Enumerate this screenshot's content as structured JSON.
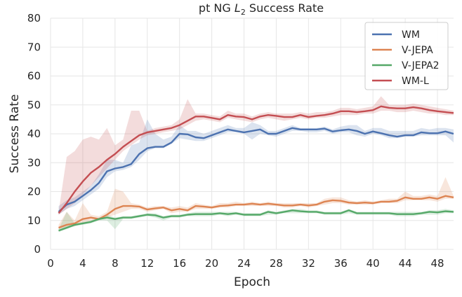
{
  "chart_data": {
    "type": "line",
    "title": "pt NG",
    "title_math": "L",
    "title_sub": "2",
    "title_suffix": "Success Rate",
    "xlabel": "Epoch",
    "ylabel": "Success Rate",
    "xlim": [
      0,
      50
    ],
    "ylim": [
      0,
      80
    ],
    "xticks": [
      0,
      4,
      8,
      12,
      16,
      20,
      24,
      28,
      32,
      36,
      40,
      44,
      48
    ],
    "yticks": [
      0,
      10,
      20,
      30,
      40,
      50,
      60,
      70,
      80
    ],
    "grid": true,
    "legend_position": "top-right",
    "x": [
      1,
      2,
      3,
      4,
      5,
      6,
      7,
      8,
      9,
      10,
      11,
      12,
      13,
      14,
      15,
      16,
      17,
      18,
      19,
      20,
      21,
      22,
      23,
      24,
      25,
      26,
      27,
      28,
      29,
      30,
      31,
      32,
      33,
      34,
      35,
      36,
      37,
      38,
      39,
      40,
      41,
      42,
      43,
      44,
      45,
      46,
      47,
      48,
      49,
      50
    ],
    "series": [
      {
        "name": "WM",
        "color": "#4c72b0",
        "values": [
          13,
          15.5,
          16.5,
          18.5,
          20.5,
          23,
          27,
          28,
          28.5,
          29.5,
          33,
          35,
          35.5,
          35.5,
          37,
          40,
          39.8,
          38.8,
          38.5,
          39.5,
          40.5,
          41.5,
          41,
          40.5,
          41,
          41.5,
          40,
          40,
          41,
          42,
          41.5,
          41.5,
          41.5,
          41.8,
          40.8,
          41.2,
          41.5,
          41,
          40,
          40.8,
          40.2,
          39.5,
          39,
          39.5,
          39.5,
          40.5,
          40.2,
          40.2,
          40.8,
          40
        ],
        "band_low": [
          12,
          14,
          15,
          17,
          19,
          21,
          25,
          27,
          27.5,
          28.5,
          31,
          34,
          35,
          35,
          36.5,
          38.5,
          38,
          37.5,
          37.5,
          38.5,
          39.5,
          40.5,
          40.5,
          40,
          38,
          40,
          39.5,
          39,
          40,
          41,
          41,
          40.5,
          40.5,
          41,
          40,
          40.5,
          40.5,
          39.5,
          39,
          40,
          39.5,
          38.5,
          38.5,
          39,
          39,
          39.5,
          39.5,
          39.5,
          39.5,
          37
        ],
        "band_high": [
          15,
          17,
          18,
          20,
          22,
          26,
          31,
          31,
          30,
          36,
          37,
          45,
          40,
          38,
          39,
          43,
          41,
          41,
          40,
          41,
          42,
          43,
          42,
          42,
          44,
          43,
          41,
          41,
          42,
          43,
          42,
          42,
          42,
          42.5,
          41.5,
          42.5,
          43,
          43,
          41,
          42,
          42,
          41,
          41,
          41,
          41,
          42,
          41.5,
          42,
          42,
          41.5
        ]
      },
      {
        "name": "V-JEPA",
        "color": "#dd8452",
        "values": [
          7.5,
          8.5,
          9,
          10.5,
          11,
          10.5,
          12,
          14,
          15,
          15,
          14.8,
          13.8,
          14.2,
          14.5,
          13.5,
          14,
          13.5,
          15,
          14.8,
          14.5,
          15,
          15.2,
          15.5,
          15.5,
          15.8,
          15.5,
          15.8,
          15.5,
          15.2,
          15.2,
          15.5,
          15.2,
          15.5,
          16.5,
          17,
          16.8,
          16.2,
          16,
          16.2,
          16,
          16.5,
          16.5,
          16.8,
          18,
          17.5,
          17.5,
          18,
          17.5,
          18.5,
          18
        ],
        "band_low": [
          7,
          7.5,
          8,
          9,
          10,
          10,
          11,
          12,
          13,
          14,
          14,
          13,
          13.5,
          14,
          12.5,
          13,
          13,
          14,
          14,
          14,
          14.5,
          14.5,
          15,
          15,
          15,
          15,
          15,
          15,
          14.5,
          14.5,
          15,
          14.5,
          15,
          15.5,
          16,
          16,
          15.5,
          15.5,
          15.5,
          15.5,
          16,
          16,
          16,
          17,
          17,
          17,
          17,
          16.5,
          17.5,
          17.5
        ],
        "band_high": [
          8.5,
          13,
          10,
          16,
          12,
          11.5,
          13,
          21,
          20,
          16,
          15.5,
          14.5,
          15,
          15,
          14.5,
          15,
          14.5,
          16,
          15.5,
          15,
          16,
          16,
          16.5,
          16,
          16.5,
          16,
          16.5,
          16,
          16,
          16,
          16,
          16,
          16,
          17.5,
          18,
          18,
          17,
          16.5,
          17,
          16.5,
          17,
          17.5,
          17.5,
          20,
          18.5,
          18.5,
          19,
          18.5,
          25,
          18.5
        ]
      },
      {
        "name": "V-JEPA2",
        "color": "#55a868",
        "values": [
          6.5,
          7.5,
          8.5,
          9,
          9.5,
          10.5,
          11,
          10.5,
          11,
          11,
          11.5,
          12,
          11.8,
          11,
          11.5,
          11.5,
          12,
          12.2,
          12.2,
          12.2,
          12.5,
          12.2,
          12.5,
          12,
          12,
          12,
          13,
          12.5,
          13,
          13.5,
          13.2,
          13,
          13,
          12.5,
          12.5,
          12.5,
          13.5,
          12.5,
          12.5,
          12.5,
          12.5,
          12.5,
          12.2,
          12.2,
          12.2,
          12.5,
          13,
          12.8,
          13.2,
          13
        ],
        "band_low": [
          6,
          7,
          8,
          8.5,
          9,
          10,
          10,
          7,
          10.5,
          10.5,
          11,
          11.5,
          11,
          10,
          11,
          11,
          11.5,
          11.5,
          11.5,
          11.5,
          12,
          11.5,
          12,
          11.5,
          11.5,
          11.5,
          12,
          12,
          12.5,
          12.5,
          12.5,
          12.5,
          12.5,
          12,
          12,
          12,
          12.5,
          12,
          12,
          12,
          12,
          12,
          11.5,
          11.5,
          11.5,
          12,
          12,
          12,
          12.5,
          12.5
        ],
        "band_high": [
          7,
          13,
          9,
          9.5,
          10,
          11,
          12,
          11,
          11.5,
          11.5,
          12,
          12.5,
          12.5,
          11.5,
          12,
          12,
          12.5,
          13,
          13,
          13,
          13,
          13,
          13,
          12.5,
          12.5,
          12.5,
          13.5,
          13,
          13.5,
          14,
          14,
          13.5,
          13.5,
          13,
          13,
          13,
          14,
          13,
          13,
          13,
          13,
          13,
          13,
          13,
          13,
          13,
          13.5,
          13.5,
          14,
          13.5
        ]
      },
      {
        "name": "WM-L",
        "color": "#c44e52",
        "values": [
          12.5,
          16,
          20,
          23.5,
          26.5,
          28.5,
          31,
          33,
          35.5,
          37.5,
          39.5,
          40.5,
          41,
          41.5,
          42,
          43,
          44.5,
          46,
          46,
          45.5,
          45,
          46.5,
          46,
          45.8,
          45,
          46,
          46.5,
          46.2,
          45.8,
          45.8,
          46.5,
          45.8,
          46.2,
          46.5,
          47,
          47.8,
          47.8,
          47.5,
          47.8,
          48.2,
          49.5,
          49,
          48.8,
          48.8,
          49.2,
          48.8,
          48.2,
          47.8,
          47.5,
          47.2
        ],
        "band_low": [
          12,
          14,
          16,
          19,
          22,
          25,
          28,
          31,
          34,
          36,
          38,
          39.5,
          40,
          40.5,
          41,
          41.5,
          43,
          44.5,
          45,
          44.5,
          44,
          45.5,
          45,
          44.5,
          44,
          45,
          45.5,
          45,
          44.5,
          45,
          45.5,
          45,
          45.5,
          45.5,
          46,
          46.5,
          46.5,
          46.5,
          47,
          47,
          48,
          48,
          47.5,
          47.5,
          48,
          47.5,
          47,
          47,
          46.5,
          46.5
        ],
        "band_high": [
          13,
          32,
          34,
          38,
          39,
          38,
          42,
          36,
          38,
          48,
          48,
          41,
          42,
          42.5,
          43,
          45,
          52,
          47,
          47,
          46.5,
          46,
          48,
          47,
          47,
          46,
          47,
          47.5,
          47,
          47,
          47,
          47.5,
          47,
          47.5,
          47.5,
          48,
          49,
          49,
          48.5,
          49,
          49.5,
          53,
          50,
          50,
          50,
          50.5,
          50,
          49.5,
          49,
          48.5,
          48
        ]
      }
    ]
  }
}
